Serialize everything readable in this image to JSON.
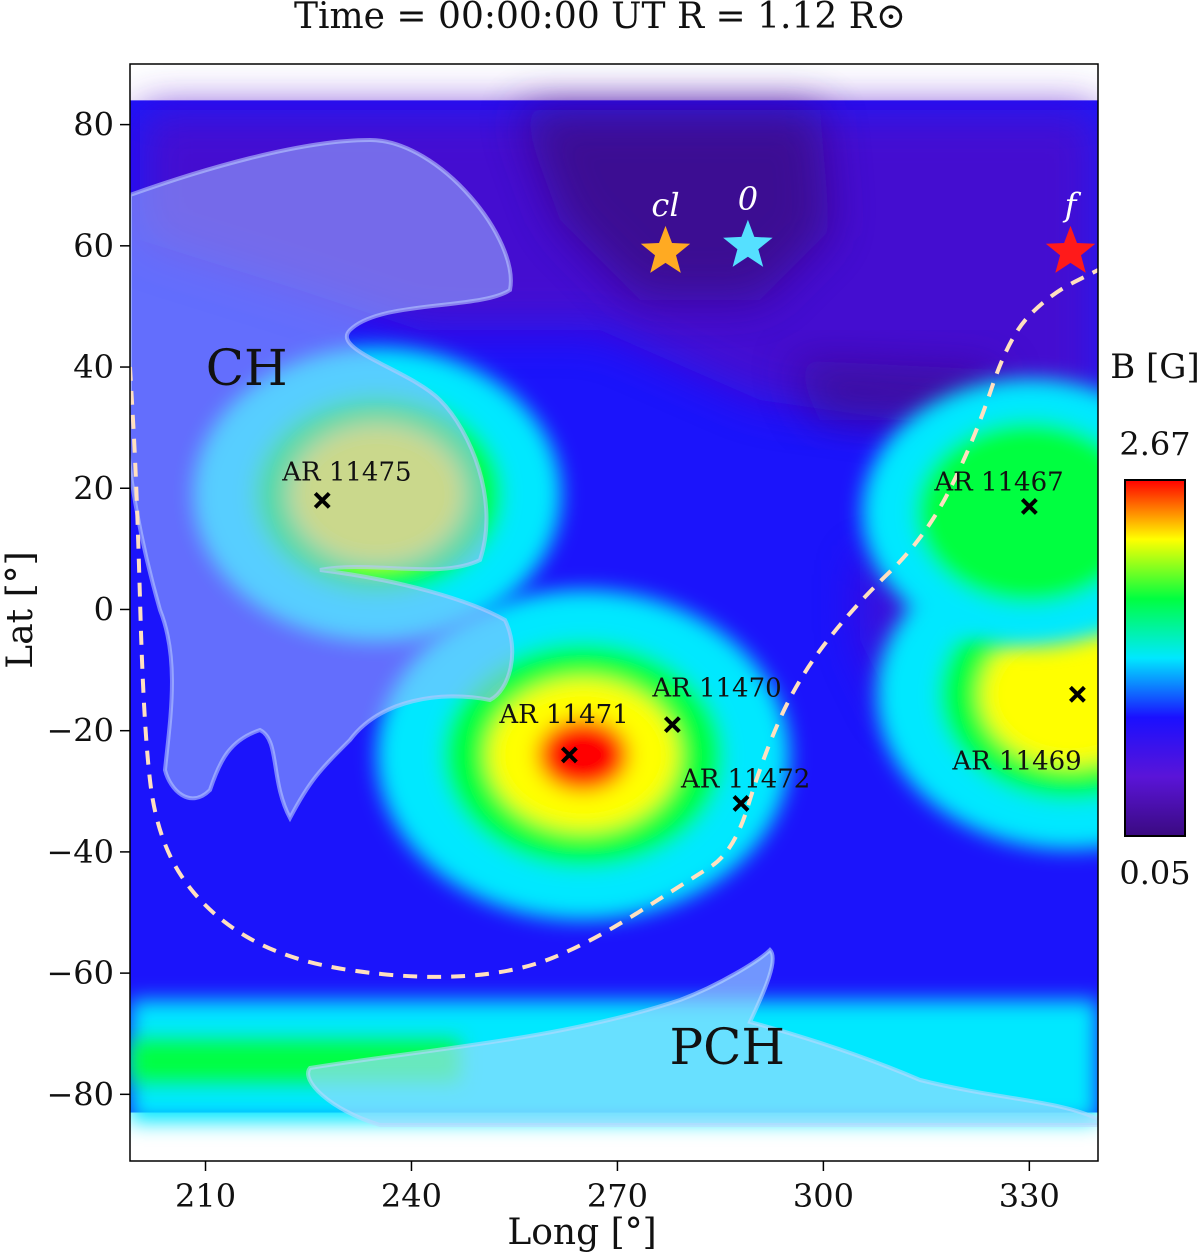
{
  "chart_data": {
    "type": "heatmap",
    "title": "Time = 00:00:00 UT     R = 1.12 R⊙",
    "xlabel": "Long [°]",
    "ylabel": "Lat [°]",
    "xlim": [
      199,
      340
    ],
    "ylim": [
      -91,
      90
    ],
    "data_extent": {
      "lon": [
        199,
        340
      ],
      "lat": [
        -83,
        84
      ]
    },
    "xticks": [
      210,
      240,
      270,
      300,
      330
    ],
    "yticks": [
      80,
      60,
      40,
      20,
      0,
      -20,
      -40,
      -60,
      -80
    ],
    "colorbar": {
      "label": "B [G]",
      "max_label": "2.67",
      "min_label": "0.05",
      "min": 0.05,
      "max": 2.67,
      "colors": [
        "#3a0a80",
        "#5a14d8",
        "#1a10ff",
        "#00e8ff",
        "#00ff40",
        "#ffff00",
        "#ff0000"
      ]
    },
    "background_color": "#1b14fb",
    "field_blobs": [
      {
        "lon": 235,
        "lat": 19,
        "peak": 2.0
      },
      {
        "lon": 265,
        "lat": -24,
        "peak": 2.67
      },
      {
        "lon": 336,
        "lat": -14,
        "peak": 2.3
      },
      {
        "lon": 330,
        "lat": 16,
        "peak": 1.5
      }
    ],
    "active_regions": [
      {
        "label": "AR 11475",
        "lon": 227,
        "lat": 18
      },
      {
        "label": "AR 11471",
        "lon": 263,
        "lat": -24
      },
      {
        "label": "AR 11470",
        "lon": 278,
        "lat": -19
      },
      {
        "label": "AR 11472",
        "lon": 288,
        "lat": -32
      },
      {
        "label": "AR 11467",
        "lon": 330,
        "lat": 17
      },
      {
        "label": "AR 11469",
        "lon": 337,
        "lat": -14
      }
    ],
    "markers": [
      {
        "label": "cl",
        "lon": 277,
        "lat": 59,
        "color": "#ffaa22"
      },
      {
        "label": "0",
        "lon": 289,
        "lat": 60,
        "color": "#55e0ff"
      },
      {
        "label": "f",
        "lon": 336,
        "lat": 59,
        "color": "#ff1a1a"
      }
    ],
    "regions": [
      {
        "label": "CH",
        "lon": 216,
        "lat": 37
      },
      {
        "label": "PCH",
        "lon": 286,
        "lat": -75
      }
    ],
    "neutral_line": {
      "color": "#ffe0c0",
      "points": [
        [
          199,
          40
        ],
        [
          200,
          20
        ],
        [
          201,
          -20
        ],
        [
          203,
          -38
        ],
        [
          210,
          -50
        ],
        [
          222,
          -58
        ],
        [
          240,
          -61
        ],
        [
          255,
          -60
        ],
        [
          266,
          -55
        ],
        [
          280,
          -45
        ],
        [
          287,
          -40
        ],
        [
          291,
          -25
        ],
        [
          296,
          -12
        ],
        [
          304,
          0
        ],
        [
          315,
          12
        ],
        [
          322,
          28
        ],
        [
          327,
          45
        ],
        [
          333,
          52
        ],
        [
          340,
          56
        ]
      ]
    }
  }
}
